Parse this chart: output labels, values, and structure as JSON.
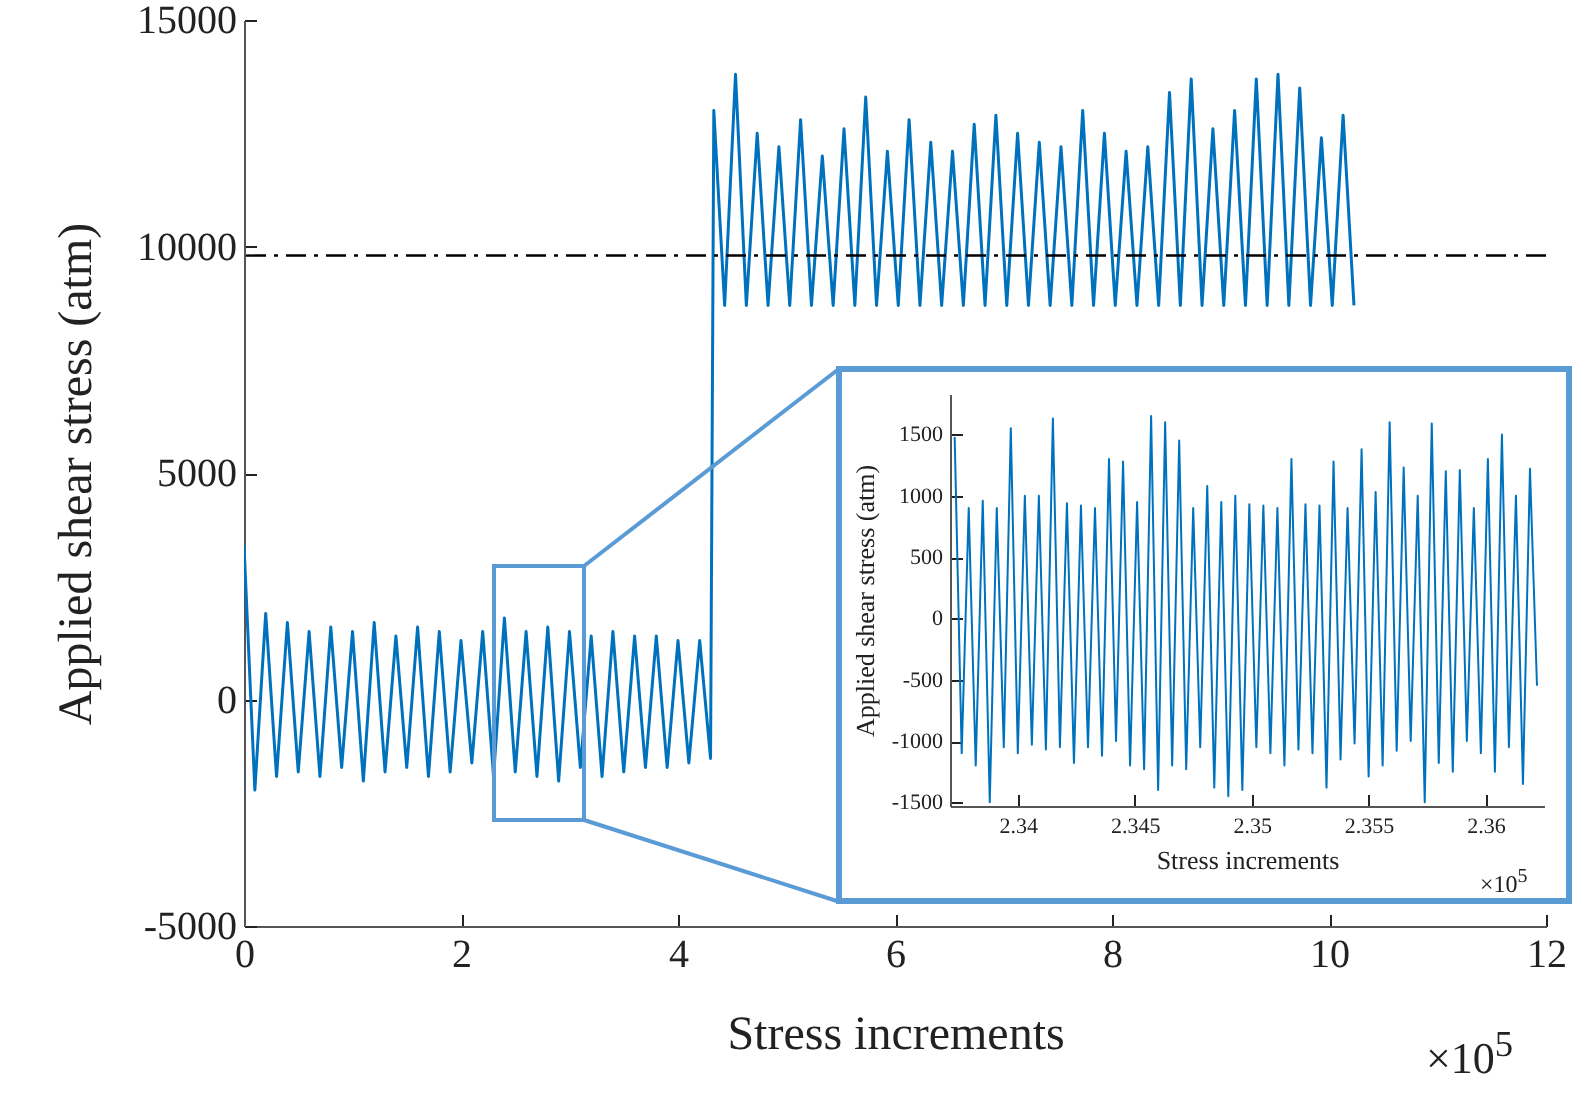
{
  "chart_data": [
    {
      "type": "line",
      "xlabel": "Stress increments",
      "ylabel": "Applied shear stress (atm)",
      "xlim": [
        0,
        12
      ],
      "xticks": [
        0,
        2,
        4,
        6,
        8,
        10,
        12
      ],
      "ylim": [
        -5000,
        15000
      ],
      "yticks": [
        -5000,
        0,
        5000,
        10000,
        15000
      ],
      "series": [
        {
          "color": "#0072bd",
          "x": [
            0,
            0.1,
            0.2,
            0.3,
            0.4,
            0.5,
            0.6,
            0.7,
            0.8,
            0.9,
            1,
            1.1,
            1.2,
            1.3,
            1.4,
            1.5,
            1.6,
            1.7,
            1.8,
            1.9,
            2,
            2.1,
            2.2,
            2.3,
            2.4,
            2.5,
            2.6,
            2.7,
            2.8,
            2.9,
            3,
            3.1,
            3.2,
            3.3,
            3.4,
            3.5,
            3.6,
            3.7,
            3.8,
            3.9,
            4,
            4.1,
            4.2,
            4.3,
            4.33,
            4.43,
            4.53,
            4.63,
            4.73,
            4.83,
            4.93,
            5.03,
            5.13,
            5.23,
            5.33,
            5.43,
            5.53,
            5.63,
            5.73,
            5.83,
            5.93,
            6.03,
            6.13,
            6.23,
            6.33,
            6.43,
            6.53,
            6.63,
            6.73,
            6.83,
            6.93,
            7.03,
            7.13,
            7.23,
            7.33,
            7.43,
            7.53,
            7.63,
            7.73,
            7.83,
            7.93,
            8.03,
            8.13,
            8.23,
            8.33,
            8.43,
            8.53,
            8.63,
            8.73,
            8.83,
            8.93,
            9.03,
            9.13,
            9.23,
            9.33,
            9.43,
            9.53,
            9.63,
            9.73,
            9.83,
            9.93,
            10.03,
            10.13,
            10.23
          ],
          "values": [
            3400,
            -2000,
            1900,
            -1700,
            1700,
            -1600,
            1500,
            -1700,
            1600,
            -1500,
            1500,
            -1800,
            1700,
            -1600,
            1400,
            -1500,
            1600,
            -1700,
            1500,
            -1600,
            1300,
            -1400,
            1500,
            -1700,
            1800,
            -1600,
            1500,
            -1700,
            1600,
            -1800,
            1500,
            -1500,
            1400,
            -1700,
            1500,
            -1600,
            1400,
            -1500,
            1400,
            -1500,
            1300,
            -1400,
            1300,
            -1300,
            13000,
            8700,
            13800,
            8700,
            12500,
            8700,
            12200,
            8700,
            12800,
            8700,
            12000,
            8700,
            12600,
            8700,
            13300,
            8700,
            12100,
            8700,
            12800,
            8700,
            12300,
            8700,
            12100,
            8700,
            12700,
            8700,
            12900,
            8700,
            12500,
            8700,
            12300,
            8700,
            12200,
            8700,
            13000,
            8700,
            12500,
            8700,
            12100,
            8700,
            12200,
            8700,
            13400,
            8700,
            13700,
            8700,
            12600,
            8700,
            13000,
            8700,
            13700,
            8700,
            13800,
            8700,
            13500,
            8700,
            12400,
            8700,
            12900,
            8700
          ]
        }
      ],
      "ref_lines": [
        {
          "axis": "y",
          "value": 9800,
          "color": "#000000",
          "line_style": "dashdot"
        }
      ],
      "annotations": [
        "×10$^{5}$"
      ]
    },
    {
      "type": "line",
      "xlabel": "Stress increments",
      "ylabel": "Applied shear stress (atm)",
      "xlim": [
        2.3371,
        2.3625
      ],
      "xticks": [
        2.34,
        2.345,
        2.35,
        2.355,
        2.36
      ],
      "ylim": [
        -1530,
        1830
      ],
      "yticks": [
        -1500,
        -1000,
        -500,
        0,
        500,
        1000,
        1500
      ],
      "series": [
        {
          "color": "#0072bd",
          "x": [
            2.3373,
            2.3376,
            2.3379,
            2.3382,
            2.3385,
            2.3388,
            2.3391,
            2.3394,
            2.3397,
            2.34,
            2.3403,
            2.3406,
            2.3409,
            2.3412,
            2.3415,
            2.3418,
            2.3421,
            2.3424,
            2.3427,
            2.343,
            2.3433,
            2.3436,
            2.3439,
            2.3442,
            2.3445,
            2.3448,
            2.3451,
            2.3454,
            2.3457,
            2.346,
            2.3463,
            2.3466,
            2.3469,
            2.3472,
            2.3475,
            2.3478,
            2.3481,
            2.3484,
            2.3487,
            2.349,
            2.3493,
            2.3496,
            2.3499,
            2.3502,
            2.3505,
            2.3508,
            2.3511,
            2.3514,
            2.3517,
            2.352,
            2.3523,
            2.3526,
            2.3529,
            2.3532,
            2.3535,
            2.3538,
            2.3541,
            2.3544,
            2.3547,
            2.355,
            2.3553,
            2.3556,
            2.3559,
            2.3562,
            2.3565,
            2.3568,
            2.3571,
            2.3574,
            2.3577,
            2.358,
            2.3583,
            2.3586,
            2.3589,
            2.3592,
            2.3595,
            2.3598,
            2.3601,
            2.3604,
            2.3607,
            2.361,
            2.3613,
            2.3616,
            2.3619,
            2.3622
          ],
          "values": [
            1480,
            -1100,
            900,
            -1200,
            960,
            -1500,
            900,
            -1050,
            1550,
            -1100,
            1000,
            -1030,
            1000,
            -1070,
            1630,
            -1050,
            940,
            -1180,
            920,
            -1050,
            900,
            -1120,
            1300,
            -1000,
            1280,
            -1200,
            950,
            -1230,
            1650,
            -1400,
            1600,
            -1200,
            1450,
            -1230,
            900,
            -1050,
            1080,
            -1380,
            950,
            -1450,
            1000,
            -1400,
            930,
            -1050,
            920,
            -1100,
            900,
            -1200,
            1300,
            -1070,
            930,
            -1100,
            920,
            -1380,
            1280,
            -1150,
            900,
            -1020,
            1380,
            -1290,
            1030,
            -1200,
            1600,
            -1080,
            1230,
            -1000,
            1000,
            -1500,
            1590,
            -1180,
            1200,
            -1250,
            1210,
            -1000,
            900,
            -1100,
            1300,
            -1250,
            1500,
            -1050,
            1000,
            -1350,
            1220,
            -550
          ]
        }
      ],
      "annotations": [
        "×10$^{5}$"
      ]
    }
  ]
}
